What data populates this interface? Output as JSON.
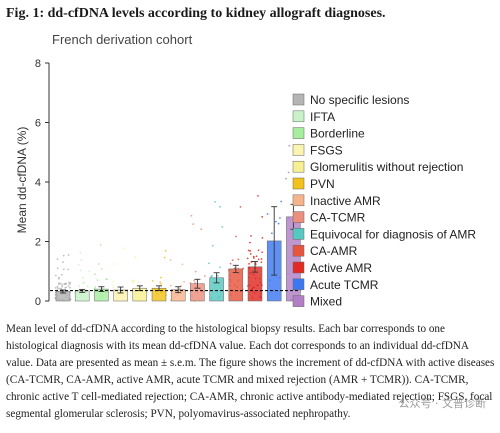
{
  "figure": {
    "title": "Fig. 1: dd-cfDNA levels according to kidney allograft diagnoses.",
    "caption": "Mean level of dd-cfDNA according to the histological biopsy results. Each bar corresponds to one histological diagnosis with its mean dd-cfDNA value. Each dot corresponds to an individual dd-cfDNA value. Data are presented as mean ± s.e.m. The figure shows the increment of dd-cfDNA with active diseases (CA-TCMR, CA-AMR, active AMR, acute TCMR and mixed rejection (AMR + TCMR)). CA-TCMR, chronic active T cell-mediated rejection; CA-AMR, chronic active antibody-mediated rejection; FSGS, focal segmental glomerular sclerosis; PVN, polyomavirus-associated nephropathy.",
    "watermark": "公众号 · 文普诊断"
  },
  "chart_data": {
    "type": "bar",
    "title": "French derivation cohort",
    "xlabel": "",
    "ylabel": "Mean dd-cfDNA (%)",
    "ylim": [
      0,
      8
    ],
    "yticks": [
      0,
      2,
      4,
      6,
      8
    ],
    "grid": false,
    "legend_position": "right",
    "reference_line": 0.35,
    "categories": [
      "No specific lesions",
      "IFTA",
      "Borderline",
      "FSGS",
      "Glomerulitis without rejection",
      "PVN",
      "Inactive AMR",
      "CA-TCMR",
      "Equivocal for diagnosis of AMR",
      "CA-AMR",
      "Active AMR",
      "Acute TCMR",
      "Mixed"
    ],
    "colors": [
      "#b5b5b5",
      "#c8f2c8",
      "#a6ee9e",
      "#fbf3b0",
      "#f7f092",
      "#f2c21a",
      "#f6b48c",
      "#eb8f7e",
      "#57c7c1",
      "#e6553e",
      "#e02a23",
      "#3d78f0",
      "#b27fc7"
    ],
    "values": [
      0.32,
      0.34,
      0.4,
      0.37,
      0.43,
      0.43,
      0.38,
      0.58,
      0.78,
      1.08,
      1.15,
      2.02,
      2.83
    ],
    "sem": [
      0.05,
      0.05,
      0.08,
      0.1,
      0.08,
      0.08,
      0.1,
      0.15,
      0.17,
      0.12,
      0.18,
      1.15,
      0.42
    ]
  }
}
